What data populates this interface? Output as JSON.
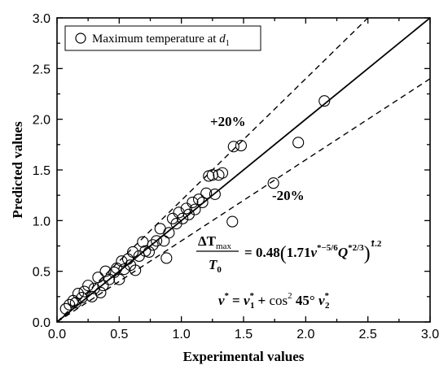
{
  "chart_data": {
    "type": "scatter",
    "title": "",
    "xlabel": "Experimental values",
    "ylabel": "Predicted values",
    "xlim": [
      0.0,
      3.0
    ],
    "ylim": [
      0.0,
      3.0
    ],
    "xticks": [
      "0.0",
      "0.5",
      "1.0",
      "1.5",
      "2.0",
      "2.5",
      "3.0"
    ],
    "yticks": [
      "0.0",
      "0.5",
      "1.0",
      "1.5",
      "2.0",
      "2.5",
      "3.0"
    ],
    "grid": false,
    "legend_position": "top-left",
    "legend_label": "Maximum temperature at",
    "legend_label_symbol": "d",
    "legend_label_subscript": "1",
    "series": [
      {
        "name": "Maximum temperature at d1",
        "marker": "open-circle",
        "points": [
          [
            0.07,
            0.13
          ],
          [
            0.1,
            0.17
          ],
          [
            0.13,
            0.21
          ],
          [
            0.15,
            0.19
          ],
          [
            0.17,
            0.28
          ],
          [
            0.2,
            0.24
          ],
          [
            0.22,
            0.3
          ],
          [
            0.25,
            0.36
          ],
          [
            0.28,
            0.25
          ],
          [
            0.3,
            0.33
          ],
          [
            0.33,
            0.44
          ],
          [
            0.35,
            0.29
          ],
          [
            0.37,
            0.36
          ],
          [
            0.39,
            0.5
          ],
          [
            0.42,
            0.42
          ],
          [
            0.46,
            0.49
          ],
          [
            0.48,
            0.53
          ],
          [
            0.5,
            0.42
          ],
          [
            0.52,
            0.6
          ],
          [
            0.54,
            0.52
          ],
          [
            0.57,
            0.62
          ],
          [
            0.59,
            0.56
          ],
          [
            0.61,
            0.69
          ],
          [
            0.63,
            0.51
          ],
          [
            0.66,
            0.65
          ],
          [
            0.69,
            0.79
          ],
          [
            0.71,
            0.7
          ],
          [
            0.74,
            0.69
          ],
          [
            0.77,
            0.76
          ],
          [
            0.8,
            0.8
          ],
          [
            0.83,
            0.92
          ],
          [
            0.86,
            0.8
          ],
          [
            0.88,
            0.63
          ],
          [
            0.9,
            0.88
          ],
          [
            0.93,
            1.02
          ],
          [
            0.96,
            0.97
          ],
          [
            0.98,
            1.08
          ],
          [
            1.01,
            1.02
          ],
          [
            1.04,
            1.12
          ],
          [
            1.06,
            1.06
          ],
          [
            1.09,
            1.18
          ],
          [
            1.11,
            1.11
          ],
          [
            1.14,
            1.21
          ],
          [
            1.17,
            1.18
          ],
          [
            1.2,
            1.27
          ],
          [
            1.22,
            1.44
          ],
          [
            1.25,
            1.45
          ],
          [
            1.27,
            1.26
          ],
          [
            1.3,
            1.45
          ],
          [
            1.33,
            1.47
          ],
          [
            1.41,
            0.99
          ],
          [
            1.42,
            1.73
          ],
          [
            1.48,
            1.74
          ],
          [
            1.74,
            1.37
          ],
          [
            1.94,
            1.77
          ],
          [
            2.15,
            2.18
          ]
        ]
      }
    ],
    "reference_lines": [
      {
        "label": "",
        "style": "solid",
        "slope": 1.0
      },
      {
        "label": "+20%",
        "style": "dashed",
        "slope": 1.2
      },
      {
        "label": "-20%",
        "style": "dashed",
        "slope": 0.8
      }
    ],
    "annotations": {
      "plus20": "+20%",
      "minus20": "-20%",
      "equation_line1": {
        "lhs_numerator": "ΔT",
        "lhs_numerator_sub": "max",
        "lhs_denominator": "T",
        "lhs_denominator_sub": "0",
        "equals": "=",
        "coef1": "0.48",
        "coef2": "1.71",
        "nu": "v",
        "nu_exp": "*−5/6",
        "q": "Q",
        "q_exp": "*2/3",
        "outer_exp": "1.2"
      },
      "equation_line2": {
        "lhs": "v",
        "lhs_sup": "*",
        "eq": "=",
        "v1": "v",
        "v1_sub": "1",
        "v1_sup": "*",
        "plus": "+",
        "cos": "cos",
        "cos_sup": "2",
        "angle": "45°",
        "v2": "v",
        "v2_sub": "2",
        "v2_sup": "*"
      }
    }
  }
}
